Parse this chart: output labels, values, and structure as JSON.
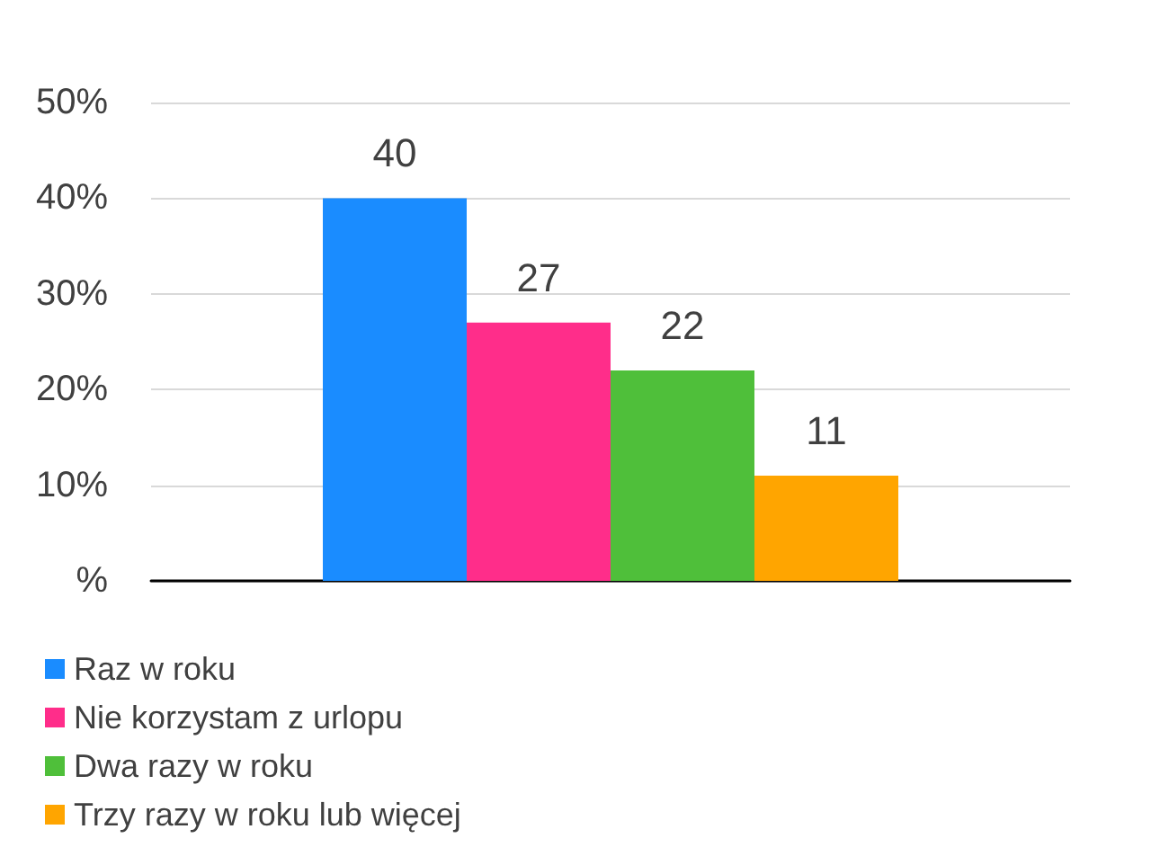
{
  "chart_data": {
    "type": "bar",
    "categories": [
      null
    ],
    "series": [
      {
        "name": "Raz w roku",
        "color": "#1a8cff",
        "values": [
          40
        ]
      },
      {
        "name": "Nie korzystam z urlopu",
        "color": "#ff2d8a",
        "values": [
          27
        ]
      },
      {
        "name": "Dwa razy w roku",
        "color": "#4fbf3a",
        "values": [
          22
        ]
      },
      {
        "name": "Trzy razy w roku lub więcej",
        "color": "#ffa500",
        "values": [
          11
        ]
      }
    ],
    "ylim": [
      0,
      50
    ],
    "yticks": [
      {
        "value": 0,
        "label": "%"
      },
      {
        "value": 10,
        "label": "10%"
      },
      {
        "value": 20,
        "label": "20%"
      },
      {
        "value": 30,
        "label": "30%"
      },
      {
        "value": 40,
        "label": "40%"
      },
      {
        "value": 50,
        "label": "50%"
      }
    ],
    "grid": "y",
    "legend": "bottom",
    "data_labels": true
  }
}
